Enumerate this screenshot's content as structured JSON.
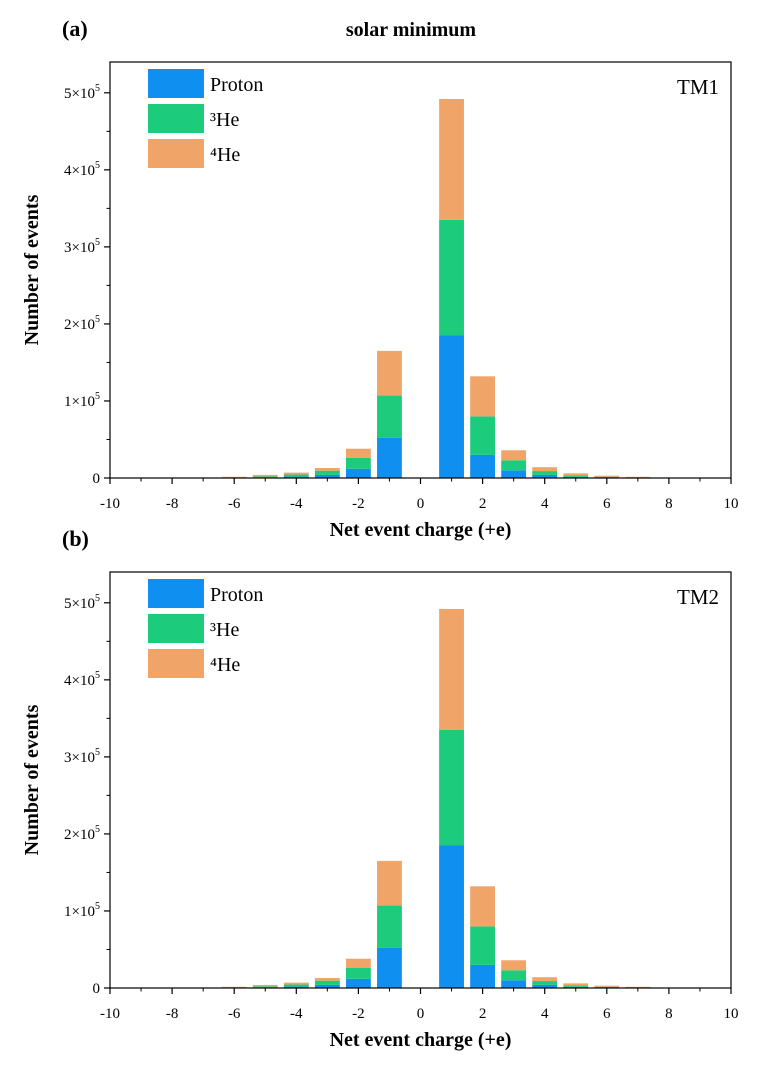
{
  "figure_title": "solar minimum",
  "colors": {
    "proton": "#0f8ff0",
    "he3": "#1ccc7c",
    "he4": "#f0a468"
  },
  "chart_data": [
    {
      "type": "bar",
      "stacked": true,
      "panel_label": "(a)",
      "annotation": "TM1",
      "xlabel": "Net event charge (+e)",
      "ylabel": "Number of events",
      "xlim": [
        -10,
        10
      ],
      "ylim": [
        0,
        540000
      ],
      "x_ticks": [
        "-10",
        "-8",
        "-6",
        "-4",
        "-2",
        "0",
        "2",
        "4",
        "6",
        "8",
        "10"
      ],
      "y_ticks": [
        {
          "value": 0,
          "mant": "0",
          "exp": ""
        },
        {
          "value": 100000,
          "mant": "1×10",
          "exp": "5"
        },
        {
          "value": 200000,
          "mant": "2×10",
          "exp": "5"
        },
        {
          "value": 300000,
          "mant": "3×10",
          "exp": "5"
        },
        {
          "value": 400000,
          "mant": "4×10",
          "exp": "5"
        },
        {
          "value": 500000,
          "mant": "5×10",
          "exp": "5"
        }
      ],
      "legend_position": "top-left",
      "x": [
        -6,
        -5,
        -4,
        -3,
        -2,
        -1,
        1,
        2,
        3,
        4,
        5,
        6,
        7
      ],
      "series": [
        {
          "name": "Proton",
          "key": "proton",
          "values": [
            300,
            900,
            1800,
            4000,
            12000,
            52000,
            185000,
            30000,
            10000,
            4000,
            1500,
            600,
            200
          ]
        },
        {
          "name": "³He",
          "key": "he3",
          "values": [
            400,
            1200,
            2700,
            5500,
            14000,
            55000,
            150000,
            50000,
            13000,
            5000,
            2000,
            900,
            400
          ]
        },
        {
          "name": "⁴He",
          "key": "he4",
          "values": [
            800,
            1900,
            2500,
            3500,
            12000,
            58000,
            157000,
            52000,
            13000,
            5000,
            2500,
            1500,
            900
          ]
        }
      ]
    },
    {
      "type": "bar",
      "stacked": true,
      "panel_label": "(b)",
      "annotation": "TM2",
      "xlabel": "Net event charge (+e)",
      "ylabel": "Number of events",
      "xlim": [
        -10,
        10
      ],
      "ylim": [
        0,
        540000
      ],
      "x_ticks": [
        "-10",
        "-8",
        "-6",
        "-4",
        "-2",
        "0",
        "2",
        "4",
        "6",
        "8",
        "10"
      ],
      "y_ticks": [
        {
          "value": 0,
          "mant": "0",
          "exp": ""
        },
        {
          "value": 100000,
          "mant": "1×10",
          "exp": "5"
        },
        {
          "value": 200000,
          "mant": "2×10",
          "exp": "5"
        },
        {
          "value": 300000,
          "mant": "3×10",
          "exp": "5"
        },
        {
          "value": 400000,
          "mant": "4×10",
          "exp": "5"
        },
        {
          "value": 500000,
          "mant": "5×10",
          "exp": "5"
        }
      ],
      "legend_position": "top-left",
      "x": [
        -6,
        -5,
        -4,
        -3,
        -2,
        -1,
        1,
        2,
        3,
        4,
        5,
        6,
        7
      ],
      "series": [
        {
          "name": "Proton",
          "key": "proton",
          "values": [
            300,
            900,
            1800,
            4000,
            12000,
            52000,
            185000,
            30000,
            10000,
            4000,
            1500,
            600,
            200
          ]
        },
        {
          "name": "³He",
          "key": "he3",
          "values": [
            400,
            1200,
            2700,
            5500,
            14000,
            55000,
            150000,
            50000,
            13000,
            5000,
            2000,
            900,
            400
          ]
        },
        {
          "name": "⁴He",
          "key": "he4",
          "values": [
            800,
            1900,
            2500,
            3500,
            12000,
            58000,
            157000,
            52000,
            13000,
            5000,
            2500,
            1500,
            900
          ]
        }
      ]
    }
  ]
}
